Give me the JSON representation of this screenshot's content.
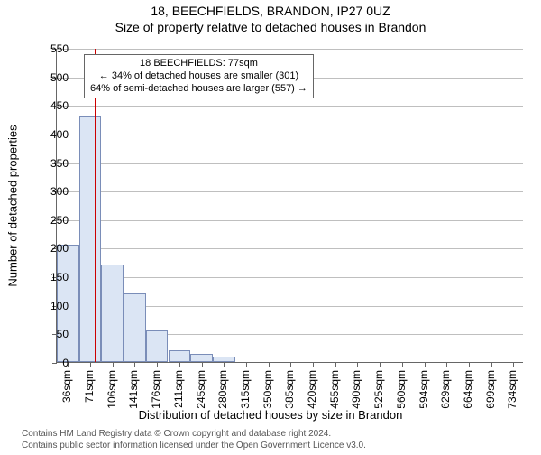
{
  "header": {
    "line1": "18, BEECHFIELDS, BRANDON, IP27 0UZ",
    "line2": "Size of property relative to detached houses in Brandon"
  },
  "chart": {
    "type": "histogram",
    "background_color": "#ffffff",
    "grid_color": "#bfbfbf",
    "axis_color": "#666666",
    "bar_fill": "#dbe5f4",
    "bar_outline": "#7a8db8",
    "marker_color": "#cc0000",
    "ylabel": "Number of detached properties",
    "xlabel": "Distribution of detached houses by size in Brandon",
    "xtick_labels": [
      "36sqm",
      "71sqm",
      "106sqm",
      "141sqm",
      "176sqm",
      "211sqm",
      "245sqm",
      "280sqm",
      "315sqm",
      "350sqm",
      "385sqm",
      "420sqm",
      "455sqm",
      "490sqm",
      "525sqm",
      "560sqm",
      "594sqm",
      "629sqm",
      "664sqm",
      "699sqm",
      "734sqm"
    ],
    "xlim": [
      18.0,
      752.0
    ],
    "ylim": [
      0,
      550
    ],
    "ytick_step": 50,
    "yticks": [
      0,
      50,
      100,
      150,
      200,
      250,
      300,
      350,
      400,
      450,
      500,
      550
    ],
    "bin_width": 35,
    "bins_left_edge": [
      18,
      53,
      88,
      123,
      158,
      193,
      228,
      263,
      298,
      333,
      368,
      403,
      438,
      473,
      508,
      543,
      578,
      613,
      648,
      683,
      718
    ],
    "values": [
      205,
      430,
      170,
      120,
      55,
      20,
      15,
      10,
      0,
      0,
      0,
      0,
      0,
      0,
      0,
      0,
      0,
      0,
      0,
      0,
      0
    ],
    "marker_x": 77,
    "annotation": {
      "line1": "18 BEECHFIELDS: 77sqm",
      "line2": "← 34% of detached houses are smaller (301)",
      "line3": "64% of semi-detached houses are larger (557) →"
    },
    "label_fontsize": 13,
    "tick_fontsize": 12,
    "title_fontsize": 14,
    "annotation_fontsize": 11
  },
  "footer": {
    "line1": "Contains HM Land Registry data © Crown copyright and database right 2024.",
    "line2": "Contains public sector information licensed under the Open Government Licence v3.0."
  }
}
